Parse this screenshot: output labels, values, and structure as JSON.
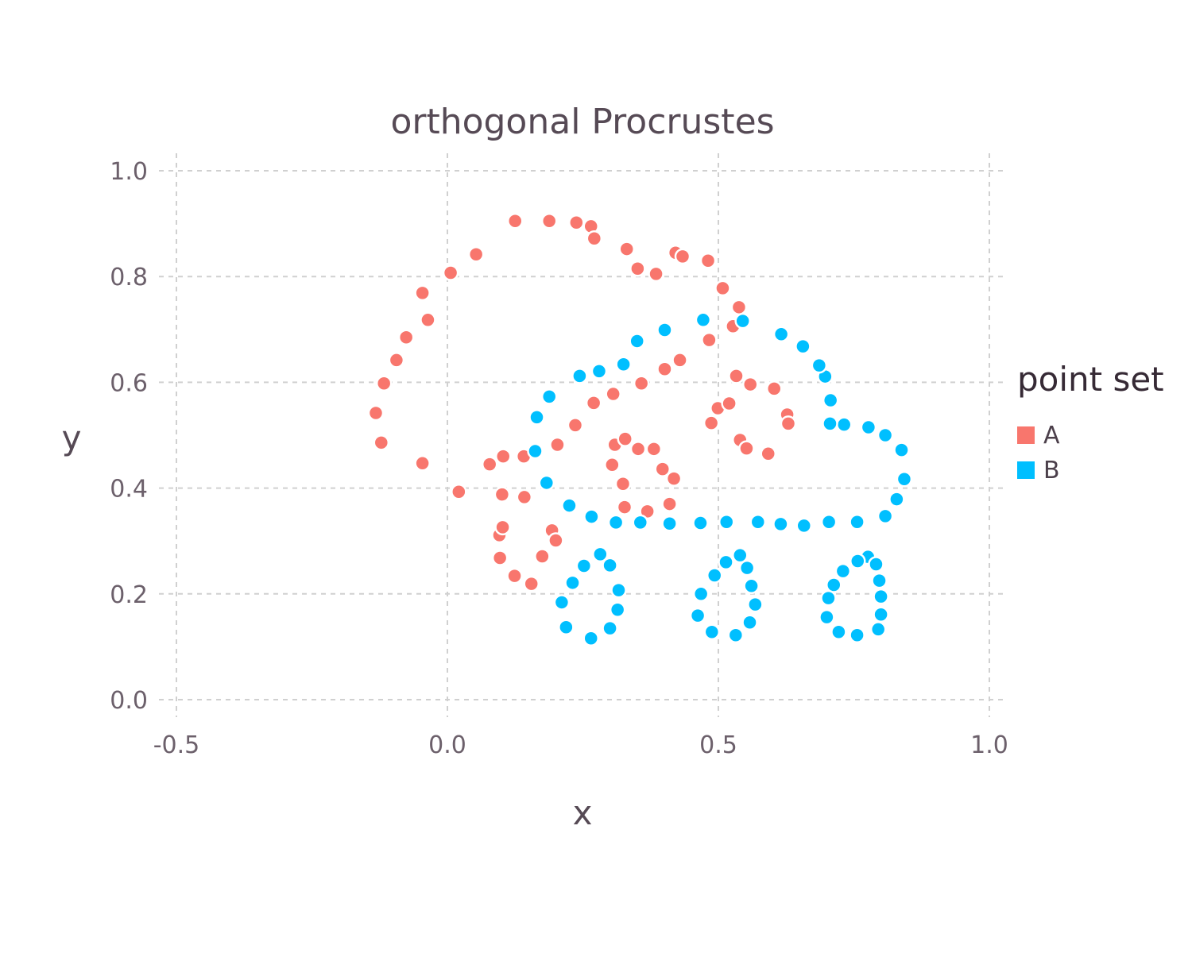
{
  "chart_data": {
    "type": "scatter",
    "title": "orthogonal Procrustes",
    "xlabel": "x",
    "ylabel": "y",
    "xlim": [
      -0.5,
      1.0
    ],
    "ylim": [
      0.0,
      1.0
    ],
    "xticks": [
      "-0.5",
      "0.0",
      "0.5",
      "1.0"
    ],
    "yticks": [
      "0.0",
      "0.2",
      "0.4",
      "0.6",
      "0.8",
      "1.0"
    ],
    "grid": true,
    "legend": {
      "title": "point set",
      "position": "right"
    },
    "series": [
      {
        "name": "A",
        "color": "#f8766d",
        "points": [
          [
            0.125,
            0.905
          ],
          [
            0.188,
            0.905
          ],
          [
            0.238,
            0.902
          ],
          [
            0.265,
            0.895
          ],
          [
            0.271,
            0.872
          ],
          [
            0.331,
            0.852
          ],
          [
            0.351,
            0.815
          ],
          [
            0.385,
            0.805
          ],
          [
            0.421,
            0.845
          ],
          [
            0.434,
            0.838
          ],
          [
            0.481,
            0.83
          ],
          [
            0.508,
            0.778
          ],
          [
            0.538,
            0.742
          ],
          [
            0.527,
            0.706
          ],
          [
            0.483,
            0.68
          ],
          [
            0.053,
            0.842
          ],
          [
            0.006,
            0.807
          ],
          [
            -0.046,
            0.769
          ],
          [
            -0.036,
            0.718
          ],
          [
            -0.076,
            0.685
          ],
          [
            -0.094,
            0.642
          ],
          [
            -0.117,
            0.598
          ],
          [
            -0.132,
            0.542
          ],
          [
            -0.122,
            0.486
          ],
          [
            -0.046,
            0.447
          ],
          [
            0.021,
            0.393
          ],
          [
            0.078,
            0.445
          ],
          [
            0.103,
            0.46
          ],
          [
            0.141,
            0.46
          ],
          [
            0.101,
            0.388
          ],
          [
            0.142,
            0.383
          ],
          [
            0.096,
            0.311
          ],
          [
            0.102,
            0.326
          ],
          [
            0.097,
            0.268
          ],
          [
            0.124,
            0.234
          ],
          [
            0.155,
            0.219
          ],
          [
            0.175,
            0.271
          ],
          [
            0.193,
            0.32
          ],
          [
            0.2,
            0.301
          ],
          [
            0.203,
            0.482
          ],
          [
            0.236,
            0.519
          ],
          [
            0.27,
            0.561
          ],
          [
            0.306,
            0.578
          ],
          [
            0.358,
            0.598
          ],
          [
            0.401,
            0.625
          ],
          [
            0.429,
            0.642
          ],
          [
            0.309,
            0.482
          ],
          [
            0.328,
            0.493
          ],
          [
            0.352,
            0.474
          ],
          [
            0.381,
            0.474
          ],
          [
            0.304,
            0.444
          ],
          [
            0.324,
            0.408
          ],
          [
            0.397,
            0.436
          ],
          [
            0.418,
            0.418
          ],
          [
            0.327,
            0.364
          ],
          [
            0.369,
            0.356
          ],
          [
            0.41,
            0.37
          ],
          [
            0.533,
            0.612
          ],
          [
            0.559,
            0.596
          ],
          [
            0.603,
            0.588
          ],
          [
            0.499,
            0.551
          ],
          [
            0.52,
            0.56
          ],
          [
            0.627,
            0.539
          ],
          [
            0.629,
            0.522
          ],
          [
            0.487,
            0.523
          ],
          [
            0.54,
            0.491
          ],
          [
            0.552,
            0.475
          ],
          [
            0.592,
            0.465
          ]
        ]
      },
      {
        "name": "B",
        "color": "#00bfff",
        "points": [
          [
            0.472,
            0.718
          ],
          [
            0.545,
            0.716
          ],
          [
            0.401,
            0.699
          ],
          [
            0.35,
            0.678
          ],
          [
            0.325,
            0.634
          ],
          [
            0.28,
            0.621
          ],
          [
            0.244,
            0.612
          ],
          [
            0.188,
            0.573
          ],
          [
            0.165,
            0.534
          ],
          [
            0.162,
            0.47
          ],
          [
            0.183,
            0.41
          ],
          [
            0.225,
            0.367
          ],
          [
            0.266,
            0.346
          ],
          [
            0.311,
            0.335
          ],
          [
            0.356,
            0.335
          ],
          [
            0.41,
            0.333
          ],
          [
            0.467,
            0.334
          ],
          [
            0.515,
            0.336
          ],
          [
            0.573,
            0.336
          ],
          [
            0.615,
            0.332
          ],
          [
            0.658,
            0.329
          ],
          [
            0.704,
            0.336
          ],
          [
            0.756,
            0.336
          ],
          [
            0.808,
            0.347
          ],
          [
            0.829,
            0.379
          ],
          [
            0.843,
            0.417
          ],
          [
            0.838,
            0.472
          ],
          [
            0.808,
            0.5
          ],
          [
            0.777,
            0.515
          ],
          [
            0.732,
            0.52
          ],
          [
            0.706,
            0.522
          ],
          [
            0.707,
            0.566
          ],
          [
            0.697,
            0.611
          ],
          [
            0.686,
            0.632
          ],
          [
            0.656,
            0.668
          ],
          [
            0.616,
            0.691
          ],
          [
            0.282,
            0.275
          ],
          [
            0.3,
            0.254
          ],
          [
            0.252,
            0.253
          ],
          [
            0.231,
            0.221
          ],
          [
            0.316,
            0.207
          ],
          [
            0.211,
            0.184
          ],
          [
            0.314,
            0.17
          ],
          [
            0.219,
            0.137
          ],
          [
            0.3,
            0.135
          ],
          [
            0.265,
            0.116
          ],
          [
            0.54,
            0.273
          ],
          [
            0.514,
            0.26
          ],
          [
            0.553,
            0.249
          ],
          [
            0.493,
            0.235
          ],
          [
            0.561,
            0.215
          ],
          [
            0.468,
            0.2
          ],
          [
            0.568,
            0.18
          ],
          [
            0.462,
            0.159
          ],
          [
            0.558,
            0.146
          ],
          [
            0.488,
            0.128
          ],
          [
            0.532,
            0.122
          ],
          [
            0.776,
            0.27
          ],
          [
            0.757,
            0.262
          ],
          [
            0.791,
            0.256
          ],
          [
            0.73,
            0.243
          ],
          [
            0.797,
            0.225
          ],
          [
            0.713,
            0.217
          ],
          [
            0.703,
            0.192
          ],
          [
            0.8,
            0.195
          ],
          [
            0.8,
            0.161
          ],
          [
            0.7,
            0.156
          ],
          [
            0.722,
            0.128
          ],
          [
            0.795,
            0.133
          ],
          [
            0.756,
            0.122
          ]
        ]
      }
    ]
  }
}
